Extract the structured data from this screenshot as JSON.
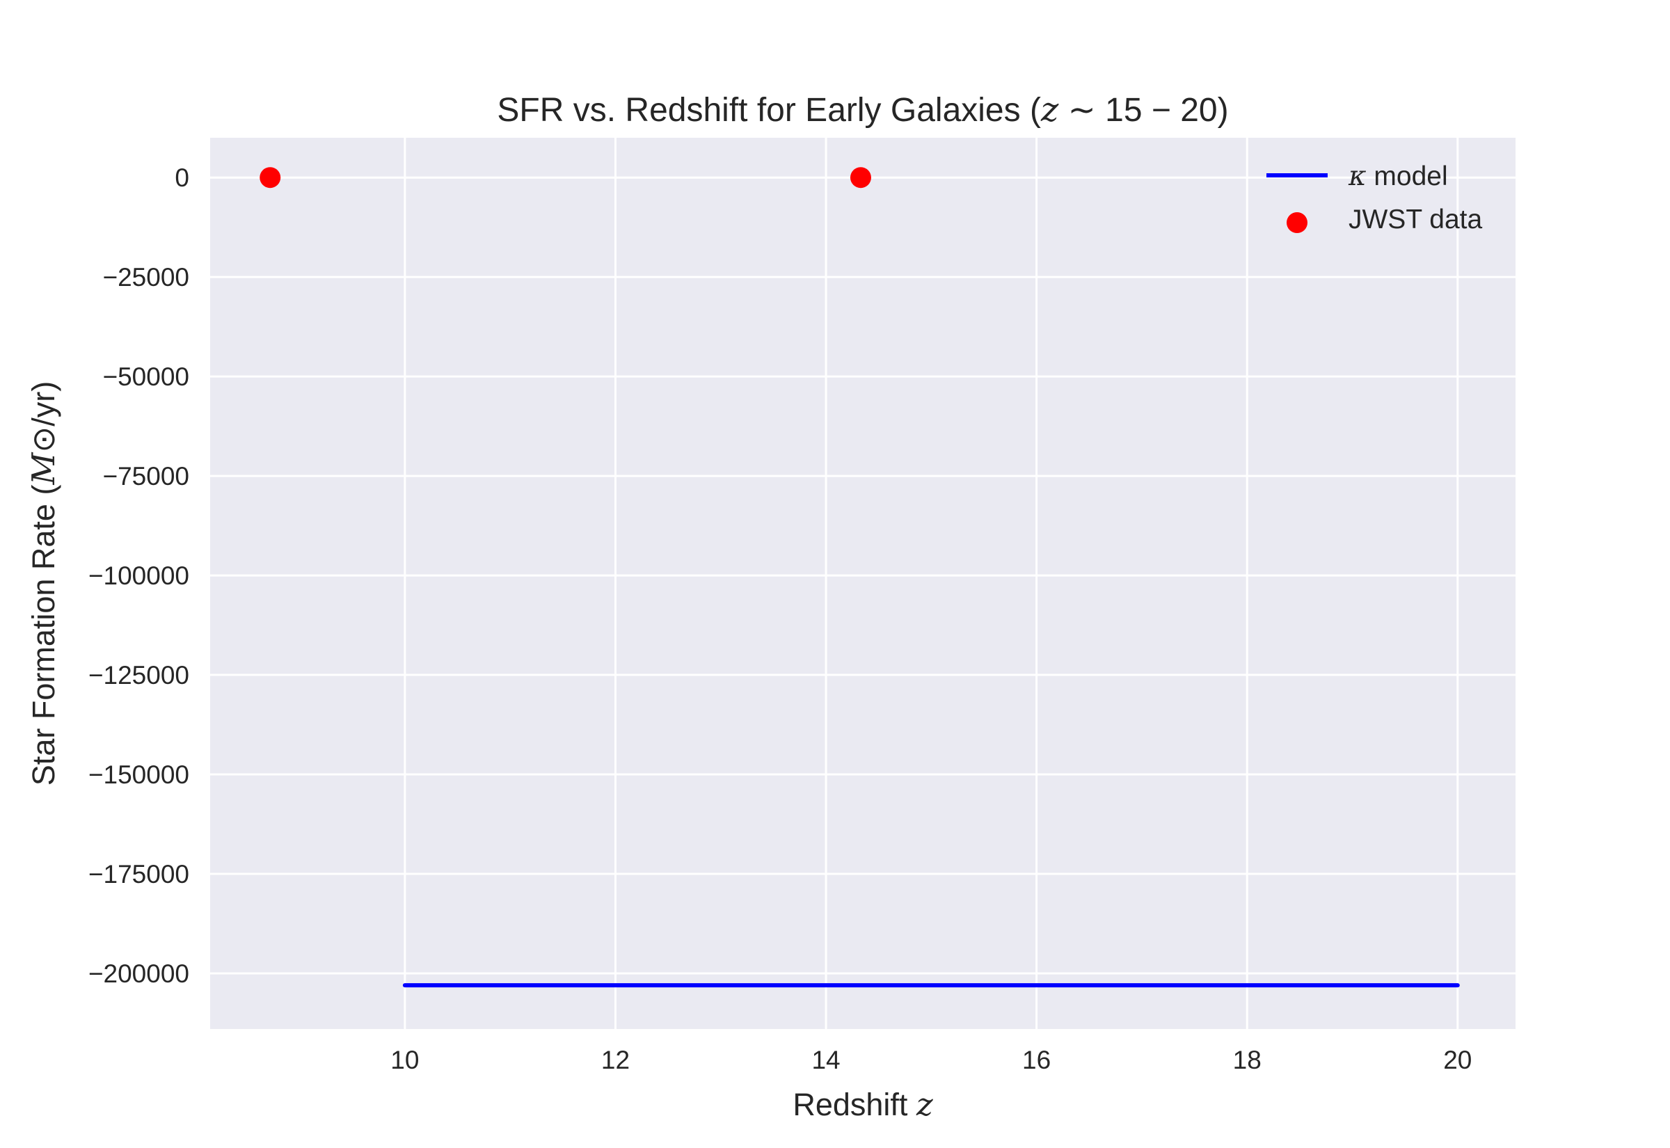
{
  "chart_data": {
    "type": "line",
    "title": "SFR vs. Redshift for Early Galaxies (z ∼ 15 − 20)",
    "xlabel": "Redshift z",
    "ylabel": "Star Formation Rate (M⊙/yr)",
    "xlim": [
      8.15,
      20.55
    ],
    "ylim": [
      -214000,
      10000
    ],
    "xticks": [
      10,
      12,
      14,
      16,
      18,
      20
    ],
    "yticks": [
      0,
      -25000,
      -50000,
      -75000,
      -100000,
      -125000,
      -150000,
      -175000,
      -200000
    ],
    "xtick_labels": [
      "10",
      "12",
      "14",
      "16",
      "18",
      "20"
    ],
    "ytick_labels": [
      "0",
      "−25000",
      "−50000",
      "−75000",
      "−100000",
      "−125000",
      "−150000",
      "−175000",
      "−200000"
    ],
    "grid": true,
    "legend_position": "top-right",
    "series": [
      {
        "name": "κ model",
        "kind": "line",
        "color": "#0000ff",
        "x": [
          10,
          20
        ],
        "y": [
          -203000,
          -203000
        ]
      },
      {
        "name": "JWST data",
        "kind": "scatter",
        "color": "#ff0000",
        "x": [
          8.72,
          14.33
        ],
        "y": [
          0,
          0
        ]
      }
    ],
    "background_color": "#eaeaf2",
    "grid_color": "#ffffff"
  }
}
